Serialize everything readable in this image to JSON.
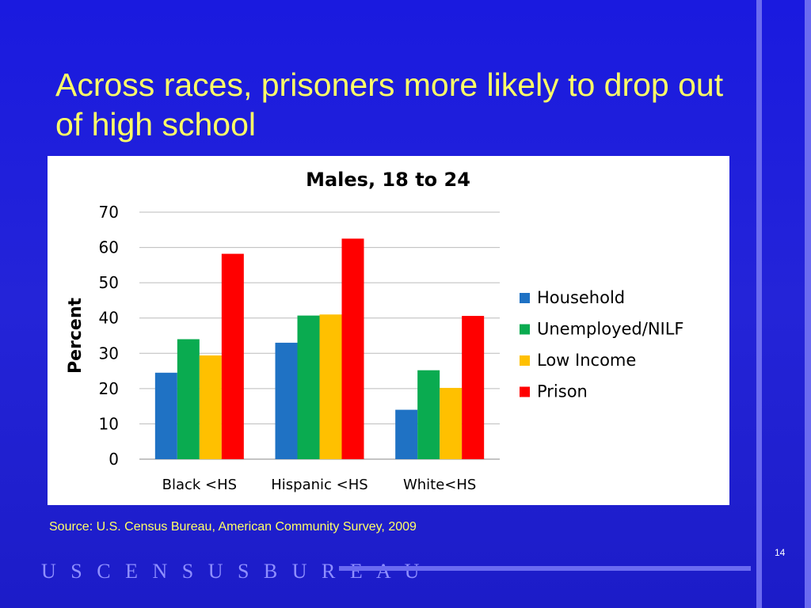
{
  "slide": {
    "title": "Across races, prisoners more likely to drop out of high school",
    "source": "Source: U.S. Census Bureau, American Community Survey, 2009",
    "page_number": "14",
    "footer_logo": "U S C E N S U S B U R E A U"
  },
  "colors": {
    "background": "#1f1fd6",
    "title_text": "#ffff66",
    "accent_line": "#6b6bf0"
  },
  "chart_data": {
    "type": "bar",
    "title": "Males, 18 to 24",
    "xlabel": "",
    "ylabel": "Percent",
    "ylim": [
      0,
      70
    ],
    "yticks": [
      0,
      10,
      20,
      30,
      40,
      50,
      60,
      70
    ],
    "grid": true,
    "legend_position": "right",
    "categories": [
      "Black <HS",
      "Hispanic <HS",
      "White<HS"
    ],
    "series": [
      {
        "name": "Household",
        "color": "#1f72c4",
        "values": [
          24.5,
          33.0,
          14.0
        ]
      },
      {
        "name": "Unemployed/NILF",
        "color": "#0aab50",
        "values": [
          34.0,
          40.7,
          25.2
        ]
      },
      {
        "name": "Low Income",
        "color": "#ffc000",
        "values": [
          29.4,
          41.0,
          20.2
        ]
      },
      {
        "name": "Prison",
        "color": "#ff0000",
        "values": [
          58.2,
          62.5,
          40.6
        ]
      }
    ]
  }
}
